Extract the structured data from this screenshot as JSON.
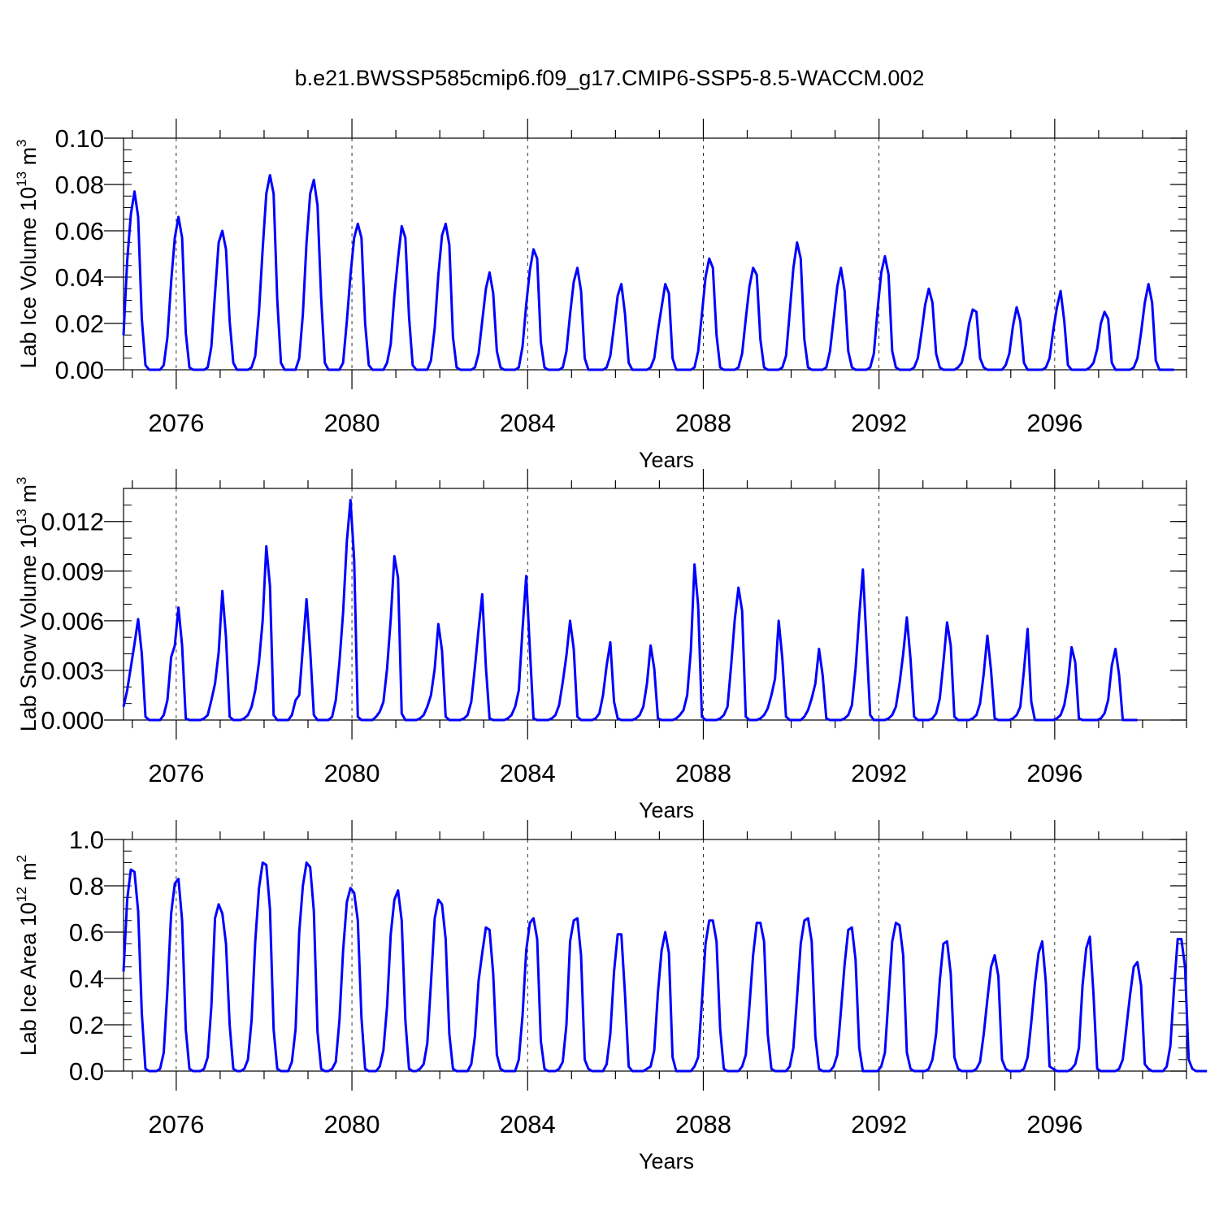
{
  "title": "b.e21.BWSSP585cmip6.f09_g17.CMIP6-SSP5-8.5-WACCM.002",
  "colors": {
    "line": "#0000ff",
    "axis": "#000000",
    "grid": "#000000"
  },
  "chart_data": [
    {
      "type": "line",
      "ylabel": {
        "text": "Lab Ice Volume 10",
        "sup": "13",
        "unit": " m",
        "unit_sup": "3"
      },
      "xlabel": "Years",
      "xlim": [
        2074.8,
        2099.0
      ],
      "ylim": [
        0,
        0.1
      ],
      "yticks": [
        "0.00",
        "0.02",
        "0.04",
        "0.06",
        "0.08",
        "0.10"
      ],
      "ytick_values": [
        0,
        0.02,
        0.04,
        0.06,
        0.08,
        0.1
      ],
      "yminor": 0.005,
      "xticks": [
        "2076",
        "2080",
        "2084",
        "2088",
        "2092",
        "2096"
      ],
      "xtick_values": [
        2076,
        2080,
        2084,
        2088,
        2092,
        2096
      ],
      "grid": "x-dashed",
      "series": [
        {
          "values": [
            0.015,
            0.047,
            0.067,
            0.077,
            0.066,
            0.022,
            0.002,
            0.0,
            0.0,
            0.0,
            0.0,
            0.002,
            0.014,
            0.038,
            0.057,
            0.066,
            0.057,
            0.016,
            0.001,
            0.0,
            0.0,
            0.0,
            0.0,
            0.001,
            0.01,
            0.033,
            0.055,
            0.06,
            0.052,
            0.021,
            0.003,
            0.0,
            0.0,
            0.0,
            0.0,
            0.001,
            0.006,
            0.025,
            0.052,
            0.076,
            0.084,
            0.076,
            0.03,
            0.003,
            0.0,
            0.0,
            0.0,
            0.0,
            0.005,
            0.024,
            0.055,
            0.076,
            0.082,
            0.071,
            0.031,
            0.003,
            0.0,
            0.0,
            0.0,
            0.0,
            0.003,
            0.021,
            0.041,
            0.057,
            0.063,
            0.057,
            0.02,
            0.002,
            0.0,
            0.0,
            0.0,
            0.0,
            0.003,
            0.011,
            0.032,
            0.048,
            0.062,
            0.057,
            0.023,
            0.002,
            0.0,
            0.0,
            0.0,
            0.0,
            0.004,
            0.018,
            0.041,
            0.058,
            0.063,
            0.054,
            0.014,
            0.001,
            0.0,
            0.0,
            0.0,
            0.0,
            0.001,
            0.007,
            0.021,
            0.035,
            0.042,
            0.033,
            0.008,
            0.001,
            0.0,
            0.0,
            0.0,
            0.0,
            0.001,
            0.01,
            0.028,
            0.043,
            0.052,
            0.048,
            0.012,
            0.001,
            0.0,
            0.0,
            0.0,
            0.0,
            0.001,
            0.008,
            0.024,
            0.038,
            0.044,
            0.034,
            0.005,
            0.0,
            0.0,
            0.0,
            0.0,
            0.0,
            0.001,
            0.006,
            0.019,
            0.032,
            0.037,
            0.024,
            0.003,
            0.0,
            0.0,
            0.0,
            0.0,
            0.0,
            0.001,
            0.005,
            0.017,
            0.027,
            0.037,
            0.033,
            0.005,
            0.0,
            0.0,
            0.0,
            0.0,
            0.0,
            0.001,
            0.008,
            0.024,
            0.04,
            0.048,
            0.044,
            0.015,
            0.001,
            0.0,
            0.0,
            0.0,
            0.0,
            0.001,
            0.007,
            0.022,
            0.036,
            0.044,
            0.041,
            0.013,
            0.001,
            0.0,
            0.0,
            0.0,
            0.0,
            0.001,
            0.006,
            0.025,
            0.044,
            0.055,
            0.048,
            0.013,
            0.001,
            0.0,
            0.0,
            0.0,
            0.0,
            0.001,
            0.008,
            0.022,
            0.036,
            0.044,
            0.034,
            0.008,
            0.001,
            0.0,
            0.0,
            0.0,
            0.0,
            0.001,
            0.007,
            0.026,
            0.042,
            0.049,
            0.041,
            0.008,
            0.001,
            0.0,
            0.0,
            0.0,
            0.0,
            0.001,
            0.005,
            0.016,
            0.028,
            0.035,
            0.029,
            0.007,
            0.001,
            0.0,
            0.0,
            0.0,
            0.0,
            0.001,
            0.003,
            0.01,
            0.02,
            0.026,
            0.025,
            0.005,
            0.001,
            0.0,
            0.0,
            0.0,
            0.0,
            0.0,
            0.002,
            0.007,
            0.019,
            0.027,
            0.021,
            0.003,
            0.0,
            0.0,
            0.0,
            0.0,
            0.0,
            0.001,
            0.005,
            0.017,
            0.027,
            0.034,
            0.021,
            0.002,
            0.0,
            0.0,
            0.0,
            0.0,
            0.0,
            0.001,
            0.003,
            0.009,
            0.02,
            0.025,
            0.022,
            0.003,
            0.0,
            0.0,
            0.0,
            0.0,
            0.0,
            0.001,
            0.005,
            0.016,
            0.029,
            0.037,
            0.029,
            0.004,
            0.0,
            0.0,
            0.0,
            0.0,
            0.0
          ]
        }
      ]
    },
    {
      "type": "line",
      "ylabel": {
        "text": "Lab Snow Volume 10",
        "sup": "13",
        "unit": " m",
        "unit_sup": "3"
      },
      "xlabel": "Years",
      "xlim": [
        2074.8,
        2099.0
      ],
      "ylim": [
        0,
        0.014
      ],
      "yticks": [
        "0.000",
        "0.003",
        "0.006",
        "0.009",
        "0.012"
      ],
      "ytick_values": [
        0,
        0.003,
        0.006,
        0.009,
        0.012
      ],
      "yminor": 0.001,
      "xticks": [
        "2076",
        "2080",
        "2084",
        "2088",
        "2092",
        "2096"
      ],
      "xtick_values": [
        2076,
        2080,
        2084,
        2088,
        2092,
        2096
      ],
      "grid": "x-dashed",
      "series": [
        {
          "values": [
            0.0008,
            0.0018,
            0.0032,
            0.0046,
            0.0061,
            0.004,
            0.0002,
            0.0,
            0.0,
            0.0,
            0.0,
            0.0003,
            0.0012,
            0.0038,
            0.0045,
            0.0068,
            0.0045,
            0.0001,
            0.0,
            0.0,
            0.0,
            0.0,
            0.0001,
            0.0003,
            0.0012,
            0.0022,
            0.0041,
            0.0078,
            0.005,
            0.0002,
            0.0,
            0.0,
            0.0,
            0.0001,
            0.0003,
            0.0008,
            0.0018,
            0.0035,
            0.006,
            0.0105,
            0.0081,
            0.0003,
            0.0,
            0.0,
            0.0,
            0.0,
            0.0003,
            0.0012,
            0.0015,
            0.0044,
            0.0073,
            0.0042,
            0.0003,
            0.0,
            0.0,
            0.0,
            0.0,
            0.0002,
            0.0012,
            0.0035,
            0.0065,
            0.0108,
            0.0133,
            0.0097,
            0.0002,
            0.0,
            0.0,
            0.0,
            0.0,
            0.0002,
            0.0005,
            0.0011,
            0.0031,
            0.0061,
            0.0099,
            0.0086,
            0.0004,
            0.0,
            0.0,
            0.0,
            0.0,
            0.0001,
            0.0003,
            0.0008,
            0.0015,
            0.0031,
            0.0058,
            0.0042,
            0.0002,
            0.0,
            0.0,
            0.0,
            0.0,
            0.0001,
            0.0003,
            0.0011,
            0.0032,
            0.0055,
            0.0076,
            0.0032,
            0.0001,
            0.0,
            0.0,
            0.0,
            0.0,
            0.0001,
            0.0003,
            0.0008,
            0.0018,
            0.0055,
            0.0087,
            0.0043,
            0.0001,
            0.0,
            0.0,
            0.0,
            0.0,
            0.0001,
            0.0003,
            0.0009,
            0.0023,
            0.0039,
            0.006,
            0.0043,
            0.0002,
            0.0,
            0.0,
            0.0,
            0.0,
            0.0001,
            0.0004,
            0.0015,
            0.0033,
            0.0047,
            0.0011,
            0.0001,
            0.0,
            0.0,
            0.0,
            0.0,
            0.0001,
            0.0003,
            0.0008,
            0.0022,
            0.0045,
            0.0031,
            0.0001,
            0.0,
            0.0,
            0.0,
            0.0,
            0.0001,
            0.0003,
            0.0006,
            0.0015,
            0.0042,
            0.0094,
            0.0069,
            0.0002,
            0.0,
            0.0,
            0.0,
            0.0,
            0.0001,
            0.0003,
            0.0008,
            0.0033,
            0.0061,
            0.008,
            0.0066,
            0.0002,
            0.0,
            0.0,
            0.0,
            0.0001,
            0.0003,
            0.0007,
            0.0015,
            0.0025,
            0.006,
            0.0037,
            0.0002,
            0.0,
            0.0,
            0.0,
            0.0,
            0.0002,
            0.0006,
            0.0013,
            0.0022,
            0.0043,
            0.0027,
            0.0001,
            0.0,
            0.0,
            0.0,
            0.0,
            0.0001,
            0.0003,
            0.0009,
            0.0031,
            0.0063,
            0.0091,
            0.0047,
            0.0003,
            0.0,
            0.0,
            0.0,
            0.0,
            0.0001,
            0.0003,
            0.0008,
            0.0022,
            0.004,
            0.0062,
            0.0037,
            0.0002,
            0.0,
            0.0,
            0.0,
            0.0,
            0.0001,
            0.0004,
            0.0013,
            0.0035,
            0.0059,
            0.0045,
            0.0002,
            0.0,
            0.0,
            0.0,
            0.0,
            0.0001,
            0.0003,
            0.001,
            0.0028,
            0.0051,
            0.003,
            0.0001,
            0.0,
            0.0,
            0.0,
            0.0,
            0.0001,
            0.0003,
            0.0008,
            0.003,
            0.0055,
            0.0011,
            0.0,
            0.0,
            0.0,
            0.0,
            0.0,
            0.0,
            0.0001,
            0.0003,
            0.0009,
            0.0022,
            0.0044,
            0.0035,
            0.0001,
            0.0,
            0.0,
            0.0,
            0.0,
            0.0,
            0.0001,
            0.0004,
            0.0012,
            0.0033,
            0.0043,
            0.0027,
            0.0,
            0.0,
            0.0,
            0.0,
            0.0
          ]
        }
      ]
    },
    {
      "type": "line",
      "ylabel": {
        "text": "Lab Ice Area 10",
        "sup": "12",
        "unit": " m",
        "unit_sup": "2"
      },
      "xlabel": "Years",
      "xlim": [
        2074.8,
        2099.0
      ],
      "ylim": [
        0,
        1.0
      ],
      "yticks": [
        "0.0",
        "0.2",
        "0.4",
        "0.6",
        "0.8",
        "1.0"
      ],
      "ytick_values": [
        0,
        0.2,
        0.4,
        0.6,
        0.8,
        1.0
      ],
      "yminor": 0.05,
      "xticks": [
        "2076",
        "2080",
        "2084",
        "2088",
        "2092",
        "2096"
      ],
      "xtick_values": [
        2076,
        2080,
        2084,
        2088,
        2092,
        2096
      ],
      "grid": "x-dashed",
      "series": [
        {
          "values": [
            0.43,
            0.74,
            0.87,
            0.86,
            0.69,
            0.25,
            0.01,
            0.0,
            0.0,
            0.0,
            0.01,
            0.08,
            0.35,
            0.68,
            0.81,
            0.83,
            0.65,
            0.18,
            0.01,
            0.0,
            0.0,
            0.0,
            0.01,
            0.06,
            0.28,
            0.66,
            0.72,
            0.68,
            0.55,
            0.2,
            0.01,
            0.0,
            0.0,
            0.01,
            0.05,
            0.22,
            0.56,
            0.79,
            0.9,
            0.89,
            0.7,
            0.18,
            0.01,
            0.0,
            0.0,
            0.0,
            0.04,
            0.18,
            0.6,
            0.8,
            0.9,
            0.88,
            0.69,
            0.17,
            0.01,
            0.0,
            0.0,
            0.01,
            0.04,
            0.22,
            0.52,
            0.73,
            0.79,
            0.77,
            0.65,
            0.23,
            0.01,
            0.0,
            0.0,
            0.0,
            0.02,
            0.09,
            0.28,
            0.59,
            0.74,
            0.78,
            0.65,
            0.22,
            0.01,
            0.0,
            0.0,
            0.01,
            0.03,
            0.12,
            0.38,
            0.66,
            0.74,
            0.72,
            0.57,
            0.16,
            0.01,
            0.0,
            0.0,
            0.0,
            0.0,
            0.03,
            0.15,
            0.39,
            0.51,
            0.62,
            0.61,
            0.42,
            0.07,
            0.01,
            0.0,
            0.0,
            0.0,
            0.0,
            0.05,
            0.24,
            0.52,
            0.64,
            0.66,
            0.57,
            0.13,
            0.01,
            0.0,
            0.0,
            0.0,
            0.01,
            0.04,
            0.2,
            0.56,
            0.65,
            0.66,
            0.5,
            0.05,
            0.01,
            0.0,
            0.0,
            0.0,
            0.0,
            0.03,
            0.16,
            0.43,
            0.59,
            0.59,
            0.33,
            0.02,
            0.0,
            0.0,
            0.0,
            0.0,
            0.01,
            0.02,
            0.09,
            0.34,
            0.52,
            0.6,
            0.51,
            0.06,
            0.0,
            0.0,
            0.0,
            0.0,
            0.0,
            0.02,
            0.06,
            0.3,
            0.55,
            0.65,
            0.65,
            0.56,
            0.18,
            0.01,
            0.0,
            0.0,
            0.0,
            0.0,
            0.02,
            0.07,
            0.28,
            0.5,
            0.64,
            0.64,
            0.56,
            0.16,
            0.01,
            0.0,
            0.0,
            0.0,
            0.0,
            0.02,
            0.1,
            0.32,
            0.55,
            0.65,
            0.66,
            0.56,
            0.15,
            0.01,
            0.0,
            0.0,
            0.0,
            0.02,
            0.07,
            0.26,
            0.46,
            0.61,
            0.62,
            0.48,
            0.1,
            0.0,
            0.0,
            0.0,
            0.0,
            0.0,
            0.02,
            0.08,
            0.32,
            0.56,
            0.64,
            0.63,
            0.5,
            0.08,
            0.01,
            0.0,
            0.0,
            0.0,
            0.0,
            0.01,
            0.05,
            0.16,
            0.39,
            0.55,
            0.56,
            0.42,
            0.06,
            0.01,
            0.0,
            0.0,
            0.0,
            0.0,
            0.01,
            0.04,
            0.16,
            0.31,
            0.45,
            0.5,
            0.41,
            0.05,
            0.01,
            0.0,
            0.0,
            0.0,
            0.0,
            0.01,
            0.06,
            0.21,
            0.38,
            0.51,
            0.56,
            0.38,
            0.02,
            0.01,
            0.0,
            0.0,
            0.0,
            0.0,
            0.01,
            0.03,
            0.1,
            0.37,
            0.53,
            0.58,
            0.33,
            0.01,
            0.0,
            0.0,
            0.0,
            0.0,
            0.0,
            0.01,
            0.05,
            0.19,
            0.33,
            0.45,
            0.47,
            0.37,
            0.03,
            0.01,
            0.0,
            0.0,
            0.0,
            0.0,
            0.02,
            0.11,
            0.36,
            0.57,
            0.57,
            0.45,
            0.05,
            0.01,
            0.0,
            0.0,
            0.0,
            0.0
          ]
        }
      ]
    }
  ]
}
